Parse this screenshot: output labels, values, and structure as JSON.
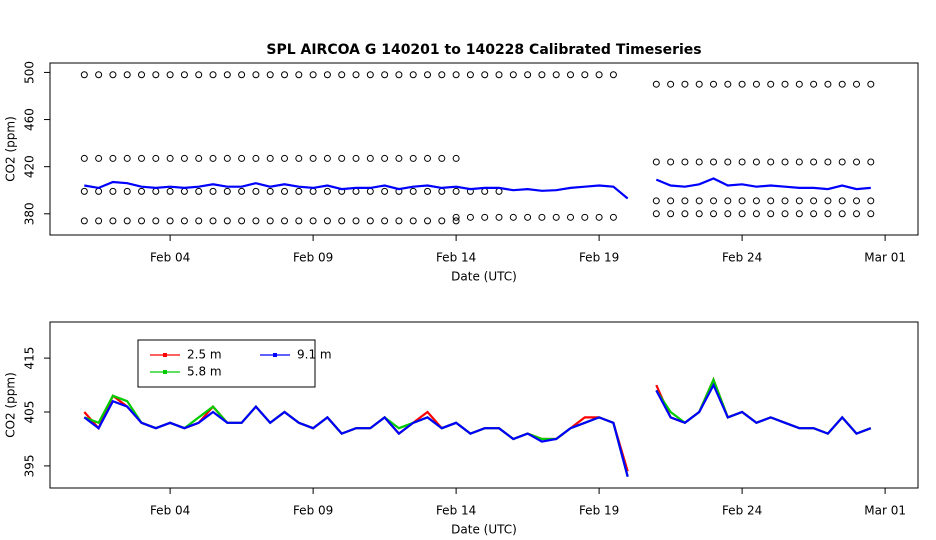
{
  "chart_data": [
    {
      "type": "scatter",
      "title": "SPL   AIRCOA  G    140201  to  140228   Calibrated Timeseries",
      "xlabel": "Date (UTC)",
      "ylabel": "CO2 (ppm)",
      "xlim": [
        -0.2,
        30.15
      ],
      "ylim": [
        362,
        508
      ],
      "xticks": [
        {
          "value": 4,
          "label": "Feb 04"
        },
        {
          "value": 9,
          "label": "Feb 09"
        },
        {
          "value": 14,
          "label": "Feb 14"
        },
        {
          "value": 19,
          "label": "Feb 19"
        },
        {
          "value": 24,
          "label": "Feb 24"
        },
        {
          "value": 29,
          "label": "Mar 01"
        }
      ],
      "yticks": [
        380,
        420,
        460,
        500
      ],
      "series": [
        {
          "color": "#000000",
          "marker": "circle",
          "x": [
            1,
            1.5,
            2,
            2.5,
            3,
            3.5,
            4,
            4.5,
            5,
            5.5,
            6,
            6.5,
            7,
            7.5,
            8,
            8.5,
            9,
            9.5,
            10,
            10.5,
            11,
            11.5,
            12,
            12.5,
            13,
            13.5,
            14,
            14.5,
            15,
            15.5,
            16,
            16.5,
            17,
            17.5,
            18,
            18.5,
            19,
            19.5
          ],
          "values": [
            498,
            498,
            498,
            498,
            498,
            498,
            498,
            498,
            498,
            498,
            498,
            498,
            498,
            498,
            498,
            498,
            498,
            498,
            498,
            498,
            498,
            498,
            498,
            498,
            498,
            498,
            498,
            498,
            498,
            498,
            498,
            498,
            498,
            498,
            498,
            498,
            498,
            498
          ]
        },
        {
          "color": "#000000",
          "marker": "circle",
          "x": [
            21,
            21.5,
            22,
            22.5,
            23,
            23.5,
            24,
            24.5,
            25,
            25.5,
            26,
            26.5,
            27,
            27.5,
            28,
            28.5
          ],
          "values": [
            490,
            490,
            490,
            490,
            490,
            490,
            490,
            490,
            490,
            490,
            490,
            490,
            490,
            490,
            490,
            490
          ]
        },
        {
          "color": "#000000",
          "marker": "circle",
          "x": [
            1,
            1.5,
            2,
            2.5,
            3,
            3.5,
            4,
            4.5,
            5,
            5.5,
            6,
            6.5,
            7,
            7.5,
            8,
            8.5,
            9,
            9.5,
            10,
            10.5,
            11,
            11.5,
            12,
            12.5,
            13,
            13.5,
            14
          ],
          "values": [
            427,
            427,
            427,
            427,
            427,
            427,
            427,
            427,
            427,
            427,
            427,
            427,
            427,
            427,
            427,
            427,
            427,
            427,
            427,
            427,
            427,
            427,
            427,
            427,
            427,
            427,
            427
          ]
        },
        {
          "color": "#000000",
          "marker": "circle",
          "x": [
            21,
            21.5,
            22,
            22.5,
            23,
            23.5,
            24,
            24.5,
            25,
            25.5,
            26,
            26.5,
            27,
            27.5,
            28,
            28.5
          ],
          "values": [
            424,
            424,
            424,
            424,
            424,
            424,
            424,
            424,
            424,
            424,
            424,
            424,
            424,
            424,
            424,
            424
          ]
        },
        {
          "color": "#000000",
          "marker": "circle",
          "x": [
            1,
            1.5,
            2,
            2.5,
            3,
            3.5,
            4,
            4.5,
            5,
            5.5,
            6,
            6.5,
            7,
            7.5,
            8,
            8.5,
            9,
            9.5,
            10,
            10.5,
            11,
            11.5,
            12,
            12.5,
            13,
            13.5,
            14,
            14.5,
            15,
            15.5
          ],
          "values": [
            399,
            399,
            399,
            399,
            399,
            399,
            399,
            399,
            399,
            399,
            399,
            399,
            399,
            399,
            399,
            399,
            399,
            399,
            399,
            399,
            399,
            399,
            399,
            399,
            399,
            399,
            399,
            399,
            399,
            399
          ]
        },
        {
          "color": "#000000",
          "marker": "circle",
          "x": [
            21,
            21.5,
            22,
            22.5,
            23,
            23.5,
            24,
            24.5,
            25,
            25.5,
            26,
            26.5,
            27,
            27.5,
            28,
            28.5
          ],
          "values": [
            391,
            391,
            391,
            391,
            391,
            391,
            391,
            391,
            391,
            391,
            391,
            391,
            391,
            391,
            391,
            391
          ]
        },
        {
          "color": "#000000",
          "marker": "circle",
          "x": [
            1,
            1.5,
            2,
            2.5,
            3,
            3.5,
            4,
            4.5,
            5,
            5.5,
            6,
            6.5,
            7,
            7.5,
            8,
            8.5,
            9,
            9.5,
            10,
            10.5,
            11,
            11.5,
            12,
            12.5,
            13,
            13.5,
            14
          ],
          "values": [
            374,
            374,
            374,
            374,
            374,
            374,
            374,
            374,
            374,
            374,
            374,
            374,
            374,
            374,
            374,
            374,
            374,
            374,
            374,
            374,
            374,
            374,
            374,
            374,
            374,
            374,
            374
          ]
        },
        {
          "color": "#000000",
          "marker": "circle",
          "x": [
            14,
            14.5,
            15,
            15.5,
            16,
            16.5,
            17,
            17.5,
            18,
            18.5,
            19,
            19.5
          ],
          "values": [
            377,
            377,
            377,
            377,
            377,
            377,
            377,
            377,
            377,
            377,
            377,
            377
          ]
        },
        {
          "color": "#000000",
          "marker": "circle",
          "x": [
            21,
            21.5,
            22,
            22.5,
            23,
            23.5,
            24,
            24.5,
            25,
            25.5,
            26,
            26.5,
            27,
            27.5,
            28,
            28.5
          ],
          "values": [
            380,
            380,
            380,
            380,
            380,
            380,
            380,
            380,
            380,
            380,
            380,
            380,
            380,
            380,
            380,
            380
          ]
        },
        {
          "color": "#0000ff",
          "marker": "line",
          "x": [
            1,
            1.5,
            2,
            2.5,
            3,
            3.5,
            4,
            4.5,
            5,
            5.5,
            6,
            6.5,
            7,
            7.5,
            8,
            8.5,
            9,
            9.5,
            10,
            10.5,
            11,
            11.5,
            12,
            12.5,
            13,
            13.5,
            14,
            14.5,
            15,
            15.5,
            16,
            16.5,
            17,
            17.5,
            18,
            18.5,
            19,
            19.5,
            20,
            20.5,
            21,
            21.5,
            22,
            22.5,
            23,
            23.5,
            24,
            24.5,
            25,
            25.5,
            26,
            26.5,
            27,
            27.5,
            28,
            28.5
          ],
          "values": [
            404,
            402,
            407,
            406,
            403,
            402,
            403,
            402,
            403,
            405,
            403,
            403,
            406,
            403,
            405,
            403,
            402,
            404,
            401,
            402,
            402,
            404,
            401,
            403,
            404,
            402,
            403,
            401,
            402,
            402,
            400,
            401,
            399.5,
            400,
            402,
            403,
            404,
            403,
            393,
            null,
            409,
            404,
            403,
            405,
            410,
            404,
            405,
            403,
            404,
            403,
            402,
            402,
            401,
            404,
            401,
            402
          ]
        }
      ]
    },
    {
      "type": "line",
      "xlabel": "Date (UTC)",
      "ylabel": "CO2 (ppm)",
      "xlim": [
        -0.2,
        30.15
      ],
      "ylim": [
        390.9,
        421.7
      ],
      "xticks": [
        {
          "value": 4,
          "label": "Feb 04"
        },
        {
          "value": 9,
          "label": "Feb 09"
        },
        {
          "value": 14,
          "label": "Feb 14"
        },
        {
          "value": 19,
          "label": "Feb 19"
        },
        {
          "value": 24,
          "label": "Feb 24"
        },
        {
          "value": 29,
          "label": "Mar 01"
        }
      ],
      "yticks": [
        395,
        405,
        415
      ],
      "legend": "topleft",
      "x": [
        1,
        1.5,
        2,
        2.5,
        3,
        3.5,
        4,
        4.5,
        5,
        5.5,
        6,
        6.5,
        7,
        7.5,
        8,
        8.5,
        9,
        9.5,
        10,
        10.5,
        11,
        11.5,
        12,
        12.5,
        13,
        13.5,
        14,
        14.5,
        15,
        15.5,
        16,
        16.5,
        17,
        17.5,
        18,
        18.5,
        19,
        19.5,
        20,
        20.5,
        21,
        21.5,
        22,
        22.5,
        23,
        23.5,
        24,
        24.5,
        25,
        25.5,
        26,
        26.5,
        27,
        27.5,
        28,
        28.5
      ],
      "series": [
        {
          "name": "2.5 m",
          "color": "#ff0000",
          "values": [
            405,
            402,
            408,
            406,
            403,
            402,
            403,
            402,
            403,
            406,
            403,
            403,
            406,
            403,
            405,
            403,
            402,
            404,
            401,
            402,
            402,
            404,
            401,
            403,
            405,
            402,
            403,
            401,
            402,
            402,
            400,
            401,
            400,
            400,
            402,
            404,
            404,
            403,
            394,
            null,
            410,
            404,
            403,
            405,
            411,
            404,
            405,
            403,
            404,
            403,
            402,
            402,
            401,
            404,
            401,
            402
          ]
        },
        {
          "name": "5.8 m",
          "color": "#00cc00",
          "values": [
            404,
            403,
            408,
            407,
            403,
            402,
            403,
            402,
            404,
            406,
            403,
            403,
            406,
            403,
            405,
            403,
            402,
            404,
            401,
            402,
            402,
            404,
            402,
            403,
            404,
            402,
            403,
            401,
            402,
            402,
            400,
            401,
            400,
            400,
            402,
            403,
            404,
            403,
            393,
            null,
            409,
            405,
            403,
            405,
            411,
            404,
            405,
            403,
            404,
            403,
            402,
            402,
            401,
            404,
            401,
            402
          ]
        },
        {
          "name": "9.1 m",
          "color": "#0000ff",
          "values": [
            404,
            402,
            407,
            406,
            403,
            402,
            403,
            402,
            403,
            405,
            403,
            403,
            406,
            403,
            405,
            403,
            402,
            404,
            401,
            402,
            402,
            404,
            401,
            403,
            404,
            402,
            403,
            401,
            402,
            402,
            400,
            401,
            399.5,
            400,
            402,
            403,
            404,
            403,
            393,
            null,
            409,
            404,
            403,
            405,
            410,
            404,
            405,
            403,
            404,
            403,
            402,
            402,
            401,
            404,
            401,
            402
          ]
        }
      ]
    }
  ]
}
